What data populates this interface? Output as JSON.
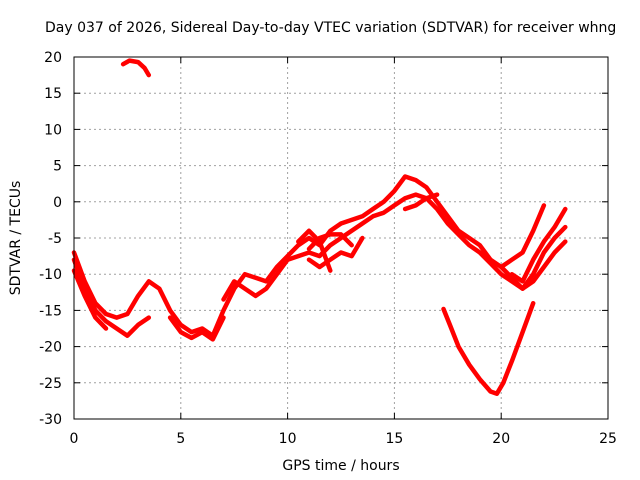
{
  "chart_data": {
    "type": "line",
    "title": "Day 037 of 2026, Sidereal Day-to-day VTEC variation (SDTVAR) for receiver whng",
    "xlabel": "GPS time / hours",
    "ylabel": "SDTVAR / TECUs",
    "xlim": [
      0,
      25
    ],
    "ylim": [
      -30,
      20
    ],
    "x_ticks": [
      0,
      5,
      10,
      15,
      20,
      25
    ],
    "y_ticks": [
      -30,
      -25,
      -20,
      -15,
      -10,
      -5,
      0,
      5,
      10,
      15,
      20
    ],
    "grid": true,
    "color": "#ff0000",
    "series": [
      {
        "name": "trace-1",
        "points": [
          [
            0,
            -7
          ],
          [
            0.5,
            -11
          ],
          [
            1,
            -14
          ],
          [
            1.5,
            -15.5
          ],
          [
            2,
            -16
          ],
          [
            2.5,
            -15.5
          ],
          [
            3,
            -13
          ],
          [
            3.5,
            -11
          ],
          [
            4,
            -12
          ],
          [
            4.5,
            -15
          ],
          [
            5,
            -17
          ],
          [
            5.5,
            -18
          ],
          [
            6,
            -17.5
          ],
          [
            6.5,
            -18.5
          ],
          [
            7,
            -15
          ],
          [
            7.5,
            -12
          ],
          [
            8,
            -10
          ],
          [
            8.5,
            -10.5
          ],
          [
            9,
            -11
          ],
          [
            9.5,
            -9
          ],
          [
            10,
            -7.5
          ],
          [
            10.5,
            -6
          ],
          [
            11,
            -5
          ],
          [
            11.5,
            -6
          ],
          [
            12,
            -4
          ],
          [
            12.5,
            -3
          ],
          [
            13,
            -2.5
          ],
          [
            13.5,
            -2
          ],
          [
            14,
            -1
          ],
          [
            14.5,
            0
          ],
          [
            15,
            1.5
          ],
          [
            15.5,
            3.5
          ],
          [
            16,
            3
          ],
          [
            16.5,
            2
          ],
          [
            17,
            0
          ],
          [
            17.5,
            -2
          ],
          [
            18,
            -4
          ],
          [
            18.5,
            -5
          ],
          [
            19,
            -6
          ],
          [
            19.5,
            -8
          ],
          [
            20,
            -9
          ],
          [
            20.5,
            -10.5
          ],
          [
            21,
            -12
          ],
          [
            21.5,
            -10
          ],
          [
            22,
            -7
          ],
          [
            22.5,
            -5
          ],
          [
            23,
            -3.5
          ]
        ]
      },
      {
        "name": "trace-2",
        "points": [
          [
            0,
            -8
          ],
          [
            0.5,
            -12
          ],
          [
            1,
            -15
          ],
          [
            1.5,
            -16.5
          ],
          [
            2,
            -17.5
          ],
          [
            2.5,
            -18.5
          ],
          [
            3,
            -17
          ],
          [
            3.5,
            -16
          ]
        ]
      },
      {
        "name": "trace-3",
        "points": [
          [
            0,
            -9.5
          ],
          [
            0.5,
            -13
          ],
          [
            1,
            -16
          ],
          [
            1.5,
            -17.5
          ]
        ]
      },
      {
        "name": "trace-4",
        "points": [
          [
            4.5,
            -16
          ],
          [
            5,
            -18
          ],
          [
            5.5,
            -18.8
          ],
          [
            6,
            -18
          ],
          [
            6.5,
            -19
          ],
          [
            7,
            -16
          ]
        ]
      },
      {
        "name": "trace-5",
        "points": [
          [
            7,
            -13.5
          ],
          [
            7.5,
            -11
          ],
          [
            8,
            -12
          ],
          [
            8.5,
            -13
          ],
          [
            9,
            -12
          ],
          [
            9.5,
            -10
          ],
          [
            10,
            -8
          ],
          [
            10.5,
            -7.5
          ],
          [
            11,
            -7
          ],
          [
            11.5,
            -7.5
          ],
          [
            12,
            -6
          ],
          [
            12.5,
            -5
          ],
          [
            13,
            -4
          ],
          [
            13.5,
            -3
          ],
          [
            14,
            -2
          ],
          [
            14.5,
            -1.5
          ],
          [
            15,
            -0.5
          ],
          [
            15.5,
            0.5
          ],
          [
            16,
            1
          ],
          [
            16.5,
            0.5
          ],
          [
            17,
            -1
          ],
          [
            17.5,
            -3
          ],
          [
            18,
            -4.5
          ],
          [
            18.5,
            -6
          ],
          [
            19,
            -7
          ],
          [
            19.5,
            -8.5
          ],
          [
            20,
            -10
          ],
          [
            20.5,
            -11
          ],
          [
            21,
            -12
          ],
          [
            21.5,
            -11
          ],
          [
            22,
            -9
          ],
          [
            22.5,
            -7
          ],
          [
            23,
            -5.5
          ]
        ]
      },
      {
        "name": "trace-6",
        "points": [
          [
            11,
            -8
          ],
          [
            11.5,
            -9
          ],
          [
            12,
            -8
          ],
          [
            12.5,
            -7
          ],
          [
            13,
            -7.5
          ],
          [
            13.5,
            -5
          ]
        ]
      },
      {
        "name": "trace-7",
        "points": [
          [
            11,
            -6.5
          ],
          [
            11.5,
            -5
          ],
          [
            12,
            -4.5
          ],
          [
            12.5,
            -4.5
          ],
          [
            13,
            -6
          ]
        ]
      },
      {
        "name": "trace-8",
        "points": [
          [
            10.5,
            -5.5
          ],
          [
            11,
            -4
          ],
          [
            11.5,
            -5.5
          ],
          [
            12,
            -9.5
          ]
        ]
      },
      {
        "name": "trace-9",
        "points": [
          [
            15.5,
            -1
          ],
          [
            16,
            -0.5
          ],
          [
            16.5,
            0.5
          ],
          [
            17,
            1
          ]
        ]
      },
      {
        "name": "trace-10",
        "points": [
          [
            20,
            -9
          ],
          [
            20.5,
            -8
          ],
          [
            21,
            -7
          ],
          [
            21.5,
            -4
          ],
          [
            22,
            -0.5
          ]
        ]
      },
      {
        "name": "trace-11",
        "points": [
          [
            20.5,
            -10
          ],
          [
            21,
            -11
          ],
          [
            21.5,
            -8
          ],
          [
            22,
            -5.5
          ],
          [
            22.5,
            -3.5
          ],
          [
            23,
            -1
          ]
        ]
      },
      {
        "name": "trace-12",
        "points": [
          [
            17.3,
            -14.8
          ],
          [
            17.6,
            -17
          ],
          [
            18,
            -20
          ],
          [
            18.5,
            -22.5
          ],
          [
            19,
            -24.5
          ],
          [
            19.5,
            -26.2
          ],
          [
            19.8,
            -26.5
          ],
          [
            20.1,
            -25
          ],
          [
            20.5,
            -22
          ],
          [
            21,
            -18
          ],
          [
            21.5,
            -14
          ]
        ]
      },
      {
        "name": "trace-13",
        "points": [
          [
            2.3,
            19
          ],
          [
            2.6,
            19.5
          ],
          [
            3,
            19.3
          ],
          [
            3.3,
            18.5
          ],
          [
            3.5,
            17.5
          ]
        ]
      }
    ]
  }
}
